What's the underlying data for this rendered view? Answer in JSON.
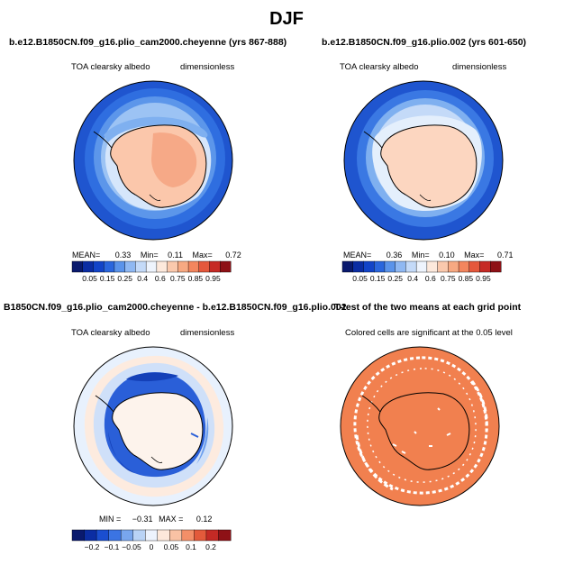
{
  "title": "DJF",
  "panels": [
    {
      "title": "b.e12.B1850CN.f09_g16.plio_cam2000.cheyenne (yrs 867-888)",
      "variable": "TOA clearsky albedo",
      "units": "dimensionless",
      "stats": {
        "mean_label": "MEAN=",
        "mean": "0.33",
        "min_label": "Min=",
        "min": "0.11",
        "max_label": "Max=",
        "max": "0.72"
      },
      "colorbar": {
        "labels": [
          "0.05",
          "0.15",
          "0.25",
          "0.4",
          "0.6",
          "0.75",
          "0.85",
          "0.95"
        ]
      }
    },
    {
      "title": "b.e12.B1850CN.f09_g16.plio.002 (yrs 601-650)",
      "variable": "TOA clearsky albedo",
      "units": "dimensionless",
      "stats": {
        "mean_label": "MEAN=",
        "mean": "0.36",
        "min_label": "Min=",
        "min": "0.10",
        "max_label": "Max=",
        "max": "0.71"
      },
      "colorbar": {
        "labels": [
          "0.05",
          "0.15",
          "0.25",
          "0.4",
          "0.6",
          "0.75",
          "0.85",
          "0.95"
        ]
      }
    },
    {
      "title": "B1850CN.f09_g16.plio_cam2000.cheyenne - b.e12.B1850CN.f09_g16.plio.002",
      "variable": "TOA clearsky albedo",
      "units": "dimensionless",
      "stats": {
        "min_label": "MIN =",
        "min": "−0.31",
        "max_label": "MAX =",
        "max": "0.12"
      },
      "colorbar": {
        "labels": [
          "−0.2",
          "−0.1",
          "−0.05",
          "0",
          "0.05",
          "0.1",
          "0.2"
        ]
      }
    },
    {
      "title": "T-test of the two means at each grid point",
      "note": "Colored cells are significant at the 0.05 level"
    }
  ],
  "colors": {
    "abs_scale": [
      "#0a1a6e",
      "#0b2da3",
      "#1244c8",
      "#2a66dd",
      "#5a93ea",
      "#8fb8f2",
      "#c4daf8",
      "#eef4fd",
      "#fde9dc",
      "#fac9ad",
      "#f7a982",
      "#f3865e",
      "#e5583c",
      "#c62a25",
      "#8e1116"
    ],
    "diff_scale": [
      "#0a1a6e",
      "#0b2da3",
      "#1a4ed0",
      "#3b74e3",
      "#78a6ee",
      "#b9d3f6",
      "#edf3fd",
      "#fde8da",
      "#f9c2a4",
      "#f38f68",
      "#e35a3b",
      "#c42a25",
      "#8e1116"
    ],
    "ttest_fill": "#f1804f"
  }
}
